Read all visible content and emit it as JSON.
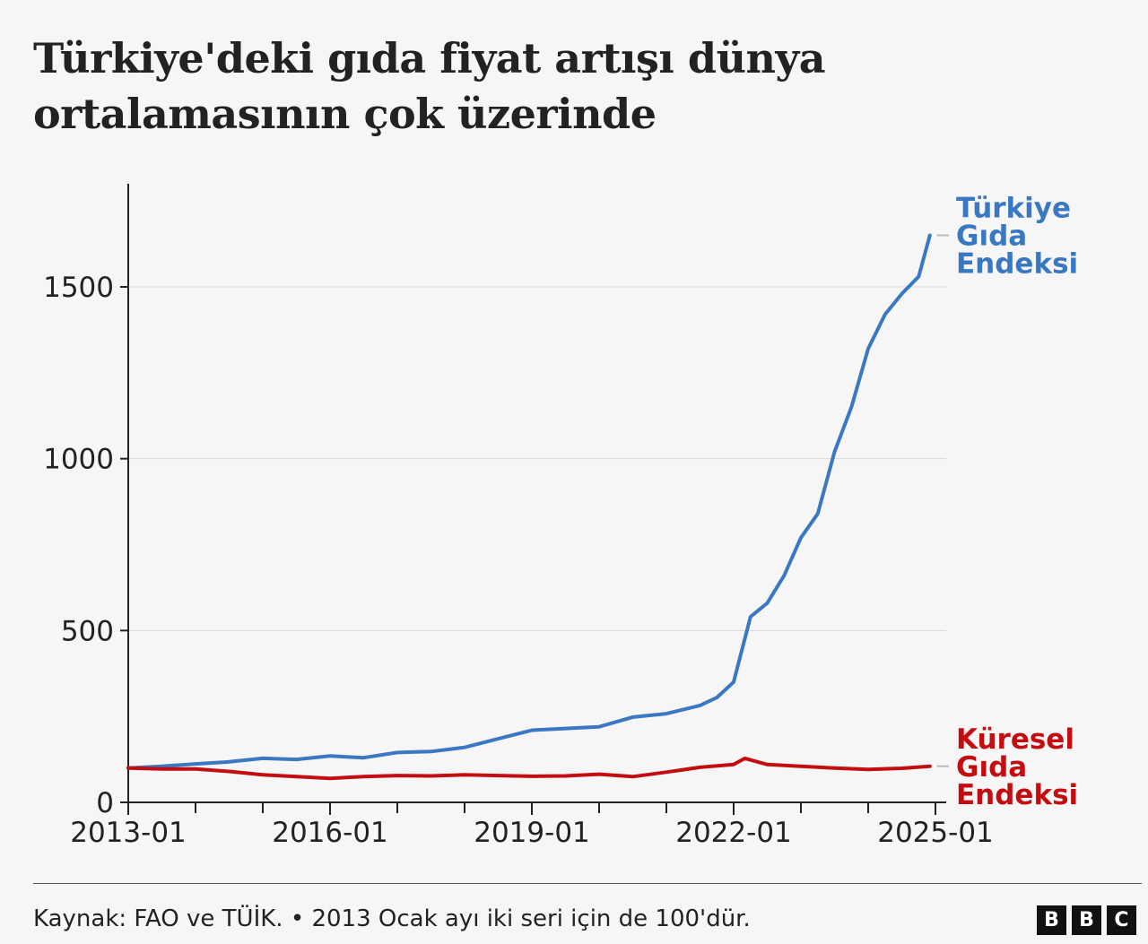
{
  "title": "Türkiye'deki gıda fiyat artışı dünya ortalamasının çok üzerinde",
  "source": "Kaynak: FAO ve TÜİK. • 2013 Ocak ayı iki seri için de 100'dür.",
  "logo": [
    "B",
    "B",
    "C"
  ],
  "colors": {
    "turkey": "#3a78c2",
    "global": "#c30e11",
    "grid": "#d8d8d8",
    "axis": "#222222"
  },
  "chart_data": {
    "type": "line",
    "xlabel": "",
    "ylabel": "",
    "xlim": [
      "2013-01",
      "2025-01"
    ],
    "ylim": [
      0,
      1800
    ],
    "y_ticks": [
      0,
      500,
      1000,
      1500
    ],
    "x_tick_labels": [
      "2013-01",
      "2016-01",
      "2019-01",
      "2022-01",
      "2025-01"
    ],
    "minor_x_ticks": [
      "2014-01",
      "2015-01",
      "2017-01",
      "2018-01",
      "2020-01",
      "2021-01",
      "2023-01",
      "2024-01"
    ],
    "grid": true,
    "legend": "direct labels at line ends (right)",
    "series": [
      {
        "name": "Türkiye Gıda Endeksi",
        "label_lines": [
          "Türkiye",
          "Gıda",
          "Endeksi"
        ],
        "color": "#3a78c2",
        "x": [
          "2013-01",
          "2013-07",
          "2014-01",
          "2014-07",
          "2015-01",
          "2015-07",
          "2016-01",
          "2016-07",
          "2017-01",
          "2017-07",
          "2018-01",
          "2018-07",
          "2019-01",
          "2019-07",
          "2020-01",
          "2020-07",
          "2021-01",
          "2021-07",
          "2021-10",
          "2022-01",
          "2022-04",
          "2022-07",
          "2022-10",
          "2023-01",
          "2023-04",
          "2023-07",
          "2023-10",
          "2024-01",
          "2024-04",
          "2024-07",
          "2024-10",
          "2024-12"
        ],
        "values": [
          100,
          105,
          112,
          118,
          128,
          125,
          135,
          130,
          145,
          148,
          160,
          185,
          210,
          215,
          220,
          248,
          258,
          282,
          305,
          350,
          540,
          580,
          660,
          770,
          840,
          1020,
          1150,
          1320,
          1420,
          1480,
          1530,
          1650
        ]
      },
      {
        "name": "Küresel Gıda Endeksi",
        "label_lines": [
          "Küresel",
          "Gıda",
          "Endeksi"
        ],
        "color": "#c30e11",
        "x": [
          "2013-01",
          "2013-07",
          "2014-01",
          "2014-07",
          "2015-01",
          "2015-07",
          "2016-01",
          "2016-07",
          "2017-01",
          "2017-07",
          "2018-01",
          "2018-07",
          "2019-01",
          "2019-07",
          "2020-01",
          "2020-07",
          "2021-01",
          "2021-07",
          "2022-01",
          "2022-03",
          "2022-07",
          "2023-01",
          "2023-07",
          "2024-01",
          "2024-07",
          "2024-12"
        ],
        "values": [
          100,
          97,
          97,
          90,
          80,
          75,
          70,
          75,
          78,
          77,
          80,
          78,
          76,
          77,
          82,
          75,
          88,
          102,
          110,
          128,
          110,
          105,
          100,
          96,
          99,
          105
        ]
      }
    ]
  }
}
